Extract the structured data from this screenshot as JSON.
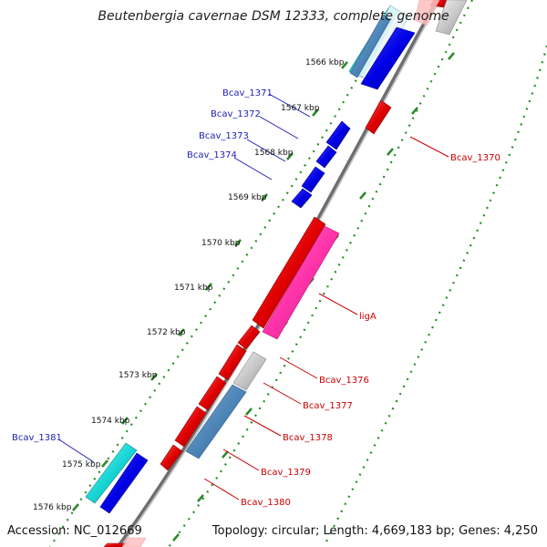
{
  "title": "Beutenbergia cavernae DSM 12333, complete genome",
  "footer": {
    "accession": "Accession: NC_012669",
    "summary": "Topology: circular; Length: 4,669,183 bp; Genes: 4,250"
  },
  "colors": {
    "backbone": "#8c8c8c",
    "ticks": "#2a8a2a",
    "forward_strand": "#e00000",
    "reverse_strand": "#0000e6",
    "rrna_like": "#ff33aa",
    "cyan_feature": "#19d6d6",
    "steelblue_feature": "#4f86b8",
    "gray_feature": "#c8c8c8",
    "label_left": "#1f1fb4",
    "label_right": "#cc0000"
  },
  "kbp_labels": [
    "1566 kbp",
    "1567 kbp",
    "1568 kbp",
    "1569 kbp",
    "1570 kbp",
    "1571 kbp",
    "1572 kbp",
    "1573 kbp",
    "1574 kbp",
    "1575 kbp",
    "1576 kbp"
  ],
  "gene_labels_left": [
    "Bcav_1371",
    "Bcav_1372",
    "Bcav_1373",
    "Bcav_1374",
    "Bcav_1381"
  ],
  "gene_labels_right": [
    "Bcav_1370",
    "ligA",
    "Bcav_1376",
    "Bcav_1377",
    "Bcav_1378",
    "Bcav_1379",
    "Bcav_1380"
  ]
}
